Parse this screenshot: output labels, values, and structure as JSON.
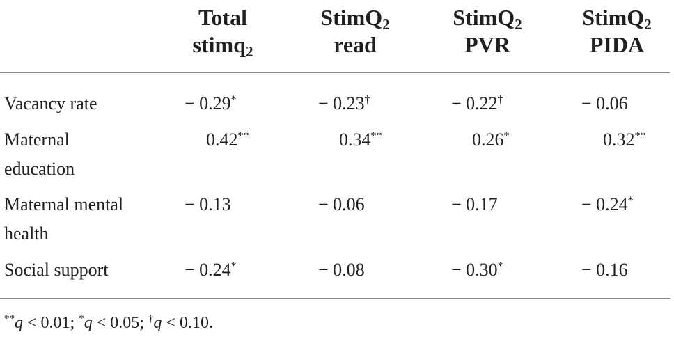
{
  "table": {
    "columns": [
      {
        "line1": "Total",
        "line2_main": "stimq",
        "line2_sub": "2"
      },
      {
        "line1_main": "StimQ",
        "line1_sub": "2",
        "line2": "read"
      },
      {
        "line1_main": "StimQ",
        "line1_sub": "2",
        "line2": "PVR"
      },
      {
        "line1_main": "StimQ",
        "line1_sub": "2",
        "line2": "PIDA"
      }
    ],
    "rows": [
      {
        "label1": "Vacancy rate",
        "label2": "",
        "cells": [
          {
            "v": "− 0.29",
            "m": "*"
          },
          {
            "v": "− 0.23",
            "m": "†"
          },
          {
            "v": "− 0.22",
            "m": "†"
          },
          {
            "v": "− 0.06",
            "m": ""
          }
        ]
      },
      {
        "label1": "Maternal",
        "label2": "education",
        "cells": [
          {
            "v": "0.42",
            "m": "**"
          },
          {
            "v": "0.34",
            "m": "**"
          },
          {
            "v": "0.26",
            "m": "*"
          },
          {
            "v": "0.32",
            "m": "**"
          }
        ]
      },
      {
        "label1": "Maternal mental",
        "label2": "health",
        "cells": [
          {
            "v": "− 0.13",
            "m": ""
          },
          {
            "v": "− 0.06",
            "m": ""
          },
          {
            "v": "− 0.17",
            "m": ""
          },
          {
            "v": "− 0.24",
            "m": "*"
          }
        ]
      },
      {
        "label1": "Social support",
        "label2": "",
        "cells": [
          {
            "v": "− 0.24",
            "m": "*"
          },
          {
            "v": "− 0.08",
            "m": ""
          },
          {
            "v": "− 0.30",
            "m": "*"
          },
          {
            "v": "− 0.16",
            "m": ""
          }
        ]
      }
    ],
    "footnote": {
      "m1": "**",
      "t1": "q",
      "r1": " < 0.01; ",
      "m2": "*",
      "t2": "q",
      "r2": " < 0.05; ",
      "m3": "†",
      "t3": "q",
      "r3": " < 0.10."
    }
  }
}
